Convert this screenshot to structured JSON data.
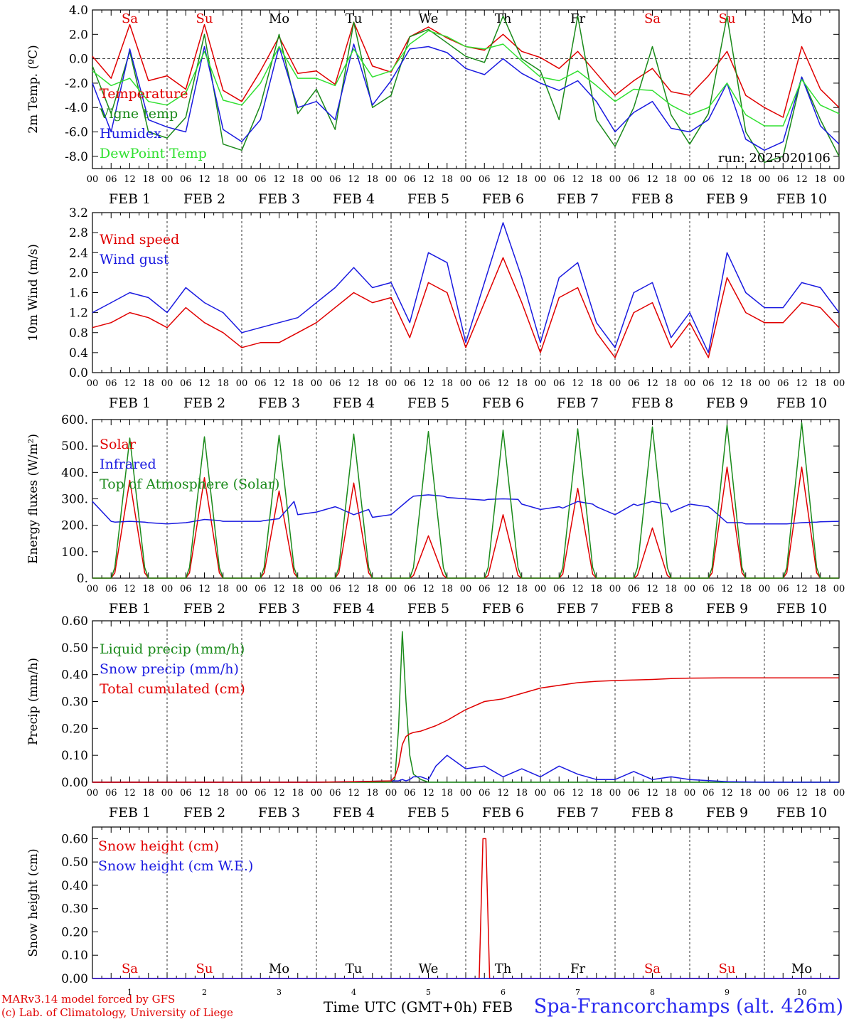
{
  "footer": {
    "model": "MARv3.14 model forced by GFS",
    "copyright": "(c) Lab. of Climatology, University of Liege",
    "time_label": "Time UTC (GMT+0h) FEB",
    "station": "Spa-Francorchamps (alt. 426m)"
  },
  "days": [
    "Sa",
    "Su",
    "Mo",
    "Tu",
    "We",
    "Th",
    "Fr",
    "Sa",
    "Su",
    "Mo"
  ],
  "day_colors": [
    "#e00000",
    "#e00000",
    "#000000",
    "#000000",
    "#000000",
    "#000000",
    "#000000",
    "#e00000",
    "#e00000",
    "#000000"
  ],
  "date_labels": [
    "FEB  1",
    "FEB  2",
    "FEB  3",
    "FEB  4",
    "FEB  5",
    "FEB  6",
    "FEB  7",
    "FEB  8",
    "FEB  9",
    "FEB 10"
  ],
  "bottom_day_numbers": [
    "1",
    "2",
    "3",
    "4",
    "5",
    "6",
    "7",
    "8",
    "9",
    "10"
  ],
  "hour_labels": [
    "00",
    "06",
    "12",
    "18"
  ],
  "colors": {
    "red": "#e00000",
    "green": "#1a8a1a",
    "blue": "#1a1ae0",
    "lightgreen": "#30e030"
  },
  "chart_data": [
    {
      "type": "line",
      "ylabel": "2m Temp. (ºC)",
      "ylim": [
        -9,
        4
      ],
      "yticks": [
        "4.0",
        "2.0",
        "0.0",
        "-2.0",
        "-4.0",
        "-6.0",
        "-8.0"
      ],
      "annotation": "run: 2025020106",
      "x_unit": "day",
      "x": [
        0,
        0.25,
        0.5,
        0.75,
        1,
        1.25,
        1.5,
        1.75,
        2,
        2.25,
        2.5,
        2.75,
        3,
        3.25,
        3.5,
        3.75,
        4,
        4.25,
        4.5,
        4.75,
        5,
        5.25,
        5.5,
        5.75,
        6,
        6.25,
        6.5,
        6.75,
        7,
        7.25,
        7.5,
        7.75,
        8,
        8.25,
        8.5,
        8.75,
        9,
        9.25,
        9.5,
        9.75,
        10
      ],
      "series": [
        {
          "name": "Temperature",
          "color": "red",
          "values": [
            0.2,
            -1.6,
            2.8,
            -1.8,
            -1.4,
            -2.5,
            2.8,
            -2.6,
            -3.5,
            -1.0,
            1.8,
            -1.2,
            -1.0,
            -2.1,
            3.0,
            -0.6,
            -1.1,
            1.8,
            2.6,
            1.7,
            1.0,
            0.7,
            2.0,
            0.6,
            0.1,
            -0.8,
            0.6,
            -1.2,
            -3.0,
            -1.8,
            -0.8,
            -2.7,
            -3.0,
            -1.4,
            0.6,
            -3.0,
            -4.0,
            -4.8,
            1.0,
            -2.5,
            -4.0
          ]
        },
        {
          "name": "Vigne temp",
          "color": "green",
          "values": [
            -0.6,
            -4.5,
            0.6,
            -6.0,
            -6.5,
            -4.8,
            2.0,
            -7.0,
            -7.5,
            -3.8,
            2.0,
            -4.5,
            -2.5,
            -5.8,
            3.0,
            -4.0,
            -3.0,
            1.8,
            2.4,
            1.3,
            0.2,
            -0.3,
            3.5,
            0.0,
            -1.0,
            -5.0,
            3.5,
            -5.0,
            -7.2,
            -4.0,
            1.0,
            -4.6,
            -7.0,
            -4.5,
            3.5,
            -6.0,
            -8.5,
            -8.0,
            -1.5,
            -5.0,
            -8.0
          ]
        },
        {
          "name": "Humidex",
          "color": "blue",
          "values": [
            -2.0,
            -6.0,
            0.8,
            -5.0,
            -5.6,
            -6.0,
            1.0,
            -5.8,
            -6.8,
            -5.0,
            1.0,
            -4.0,
            -3.5,
            -5.0,
            1.2,
            -3.8,
            -1.8,
            0.8,
            1.0,
            0.5,
            -0.8,
            -1.3,
            0.0,
            -1.2,
            -2.0,
            -2.6,
            -1.8,
            -3.5,
            -6.0,
            -4.4,
            -3.5,
            -5.7,
            -6.0,
            -5.0,
            -2.0,
            -6.6,
            -7.5,
            -6.8,
            -1.5,
            -5.5,
            -7.0
          ]
        },
        {
          "name": "DewPoint Temp",
          "color": "lightgreen",
          "values": [
            -1.0,
            -2.2,
            -1.6,
            -3.5,
            -3.8,
            -2.8,
            0.6,
            -3.4,
            -3.8,
            -2.0,
            1.0,
            -1.6,
            -1.6,
            -2.2,
            0.8,
            -1.5,
            -1.0,
            1.2,
            2.3,
            1.8,
            1.0,
            0.8,
            1.2,
            -0.2,
            -1.5,
            -1.8,
            -1.0,
            -2.2,
            -3.5,
            -2.5,
            -2.6,
            -3.8,
            -4.6,
            -4.0,
            -2.0,
            -4.6,
            -5.5,
            -5.5,
            -1.7,
            -3.8,
            -4.5
          ]
        }
      ]
    },
    {
      "type": "line",
      "ylabel": "10m Wind (m/s)",
      "ylim": [
        0,
        3.2
      ],
      "yticks": [
        "3.2",
        "2.8",
        "2.4",
        "2.0",
        "1.6",
        "1.2",
        "0.8",
        "0.4",
        "0.0"
      ],
      "x_unit": "day",
      "x": [
        0,
        0.25,
        0.5,
        0.75,
        1,
        1.25,
        1.5,
        1.75,
        2,
        2.25,
        2.5,
        2.75,
        3,
        3.25,
        3.5,
        3.75,
        4,
        4.25,
        4.5,
        4.75,
        5,
        5.25,
        5.5,
        5.75,
        6,
        6.25,
        6.5,
        6.75,
        7,
        7.25,
        7.5,
        7.75,
        8,
        8.25,
        8.5,
        8.75,
        9,
        9.25,
        9.5,
        9.75,
        10
      ],
      "series": [
        {
          "name": "Wind speed",
          "color": "red",
          "values": [
            0.9,
            1.0,
            1.2,
            1.1,
            0.9,
            1.3,
            1.0,
            0.8,
            0.5,
            0.6,
            0.6,
            0.8,
            1.0,
            1.3,
            1.6,
            1.4,
            1.5,
            0.7,
            1.8,
            1.6,
            0.5,
            1.4,
            2.3,
            1.4,
            0.4,
            1.5,
            1.7,
            0.8,
            0.3,
            1.2,
            1.4,
            0.5,
            1.0,
            0.3,
            1.9,
            1.2,
            1.0,
            1.0,
            1.4,
            1.3,
            0.9
          ]
        },
        {
          "name": "Wind gust",
          "color": "blue",
          "values": [
            1.2,
            1.4,
            1.6,
            1.5,
            1.2,
            1.7,
            1.4,
            1.2,
            0.8,
            0.9,
            1.0,
            1.1,
            1.4,
            1.7,
            2.1,
            1.7,
            1.8,
            1.0,
            2.4,
            2.2,
            0.6,
            1.8,
            3.0,
            1.9,
            0.6,
            1.9,
            2.2,
            1.0,
            0.5,
            1.6,
            1.8,
            0.7,
            1.2,
            0.4,
            2.4,
            1.6,
            1.3,
            1.3,
            1.8,
            1.7,
            1.2
          ]
        }
      ]
    },
    {
      "type": "line",
      "ylabel": "Energy fluxes (W/m²)",
      "ylim": [
        0,
        600
      ],
      "yticks": [
        "600.",
        "500.",
        "400.",
        "300.",
        "200.",
        "100.",
        "0."
      ],
      "x_unit": "day",
      "x": [
        0,
        0.25,
        0.3,
        0.5,
        0.7,
        0.75,
        1,
        1.25,
        1.3,
        1.5,
        1.7,
        1.75,
        2,
        2.25,
        2.3,
        2.5,
        2.7,
        2.75,
        3,
        3.25,
        3.3,
        3.5,
        3.7,
        3.75,
        4,
        4.25,
        4.3,
        4.5,
        4.7,
        4.75,
        5,
        5.25,
        5.3,
        5.5,
        5.7,
        5.75,
        6,
        6.25,
        6.3,
        6.5,
        6.7,
        6.75,
        7,
        7.25,
        7.3,
        7.5,
        7.7,
        7.75,
        8,
        8.25,
        8.3,
        8.5,
        8.7,
        8.75,
        9,
        9.25,
        9.3,
        9.5,
        9.7,
        9.75,
        10
      ],
      "series": [
        {
          "name": "Solar",
          "color": "red",
          "values": [
            0,
            0,
            20,
            370,
            20,
            0,
            0,
            0,
            20,
            380,
            20,
            0,
            0,
            0,
            20,
            330,
            20,
            0,
            0,
            0,
            20,
            360,
            20,
            0,
            0,
            0,
            10,
            160,
            10,
            0,
            0,
            0,
            10,
            240,
            10,
            0,
            0,
            0,
            15,
            340,
            15,
            0,
            0,
            0,
            10,
            190,
            10,
            0,
            0,
            0,
            20,
            420,
            20,
            0,
            0,
            0,
            20,
            420,
            20,
            0,
            0
          ]
        },
        {
          "name": "Infrared",
          "color": "blue",
          "values": [
            290,
            215,
            212,
            215,
            212,
            210,
            205,
            210,
            212,
            222,
            218,
            215,
            215,
            215,
            218,
            225,
            290,
            240,
            250,
            270,
            265,
            240,
            260,
            230,
            240,
            300,
            310,
            315,
            310,
            305,
            300,
            295,
            298,
            300,
            298,
            280,
            260,
            270,
            265,
            290,
            280,
            270,
            240,
            280,
            275,
            290,
            280,
            250,
            280,
            270,
            260,
            210,
            210,
            205,
            205,
            205,
            205,
            210,
            212,
            213,
            215
          ]
        },
        {
          "name": "Top of Atmosphere (Solar)",
          "color": "green",
          "values": [
            0,
            0,
            40,
            530,
            40,
            0,
            0,
            0,
            40,
            535,
            40,
            0,
            0,
            0,
            40,
            540,
            40,
            0,
            0,
            0,
            40,
            545,
            40,
            0,
            0,
            0,
            40,
            555,
            40,
            0,
            0,
            0,
            40,
            560,
            40,
            0,
            0,
            0,
            40,
            565,
            40,
            0,
            0,
            0,
            40,
            572,
            40,
            0,
            0,
            0,
            40,
            580,
            40,
            0,
            0,
            0,
            40,
            588,
            40,
            0,
            0
          ]
        }
      ]
    },
    {
      "type": "line",
      "ylabel": "Precip (mm/h)",
      "ylim": [
        0,
        0.6
      ],
      "yticks": [
        "0.60",
        "0.50",
        "0.40",
        "0.30",
        "0.20",
        "0.10",
        "0.00"
      ],
      "x_unit": "day",
      "x": [
        0,
        0.5,
        1,
        1.5,
        2,
        2.5,
        3,
        3.5,
        4,
        4.05,
        4.1,
        4.15,
        4.2,
        4.25,
        4.3,
        4.4,
        4.5,
        4.6,
        4.75,
        5,
        5.25,
        5.5,
        5.75,
        6,
        6.25,
        6.5,
        6.75,
        7,
        7.25,
        7.5,
        7.75,
        8,
        8.5,
        9,
        9.5,
        10
      ],
      "series": [
        {
          "name": "Liquid precip (mm/h)",
          "color": "green",
          "values": [
            0,
            0,
            0,
            0,
            0,
            0,
            0,
            0,
            0,
            0.01,
            0.2,
            0.56,
            0.3,
            0.1,
            0.03,
            0.01,
            0,
            0,
            0,
            0,
            0,
            0,
            0,
            0,
            0,
            0,
            0,
            0,
            0,
            0,
            0,
            0,
            0,
            0,
            0,
            0
          ]
        },
        {
          "name": "Snow precip (mm/h)",
          "color": "blue",
          "values": [
            0,
            0,
            0,
            0,
            0,
            0,
            0,
            0.002,
            0.005,
            0.005,
            0.005,
            0.01,
            0.005,
            0.01,
            0.02,
            0.02,
            0.01,
            0.06,
            0.1,
            0.05,
            0.06,
            0.02,
            0.05,
            0.02,
            0.06,
            0.03,
            0.01,
            0.01,
            0.04,
            0.01,
            0.02,
            0.01,
            0.002,
            0,
            0,
            0
          ]
        },
        {
          "name": "Total cumulated (cm)",
          "color": "red",
          "values": [
            0,
            0,
            0,
            0,
            0,
            0,
            0,
            0.002,
            0.005,
            0.02,
            0.06,
            0.14,
            0.17,
            0.18,
            0.185,
            0.19,
            0.2,
            0.21,
            0.23,
            0.27,
            0.3,
            0.31,
            0.33,
            0.35,
            0.36,
            0.37,
            0.375,
            0.378,
            0.38,
            0.382,
            0.385,
            0.387,
            0.388,
            0.388,
            0.388,
            0.388
          ]
        }
      ]
    },
    {
      "type": "line",
      "ylabel": "Snow height (cm)",
      "ylim": [
        0,
        0.65
      ],
      "yticks": [
        "0.60",
        "0.50",
        "0.40",
        "0.30",
        "0.20",
        "0.10",
        "0.00"
      ],
      "x_unit": "day",
      "x": [
        0,
        5.18,
        5.23,
        5.27,
        5.32,
        10
      ],
      "series": [
        {
          "name": "Snow height (cm)",
          "color": "red",
          "values": [
            0,
            0,
            0.6,
            0.6,
            0,
            0
          ]
        },
        {
          "name": "Snow height (cm W.E.)",
          "color": "blue",
          "values": [
            0,
            0,
            0,
            0,
            0,
            0
          ]
        }
      ]
    }
  ]
}
